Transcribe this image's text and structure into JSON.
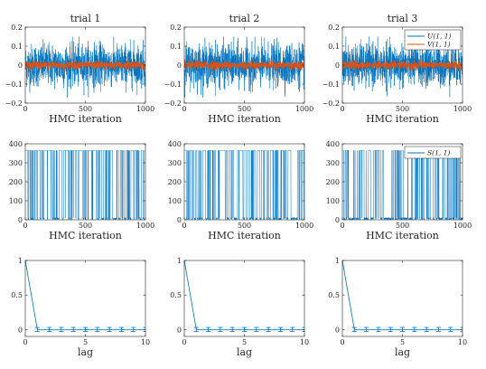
{
  "colors": {
    "blue": "#0072BD",
    "orange": "#D95319",
    "axis": "#262626",
    "background": "#ffffff"
  },
  "chart_data": [
    {
      "type": "line",
      "title": "trial 1",
      "xlabel": "HMC iteration",
      "ylabel": "",
      "xlim": [
        0,
        1000
      ],
      "ylim": [
        -0.2,
        0.2
      ],
      "xticks": [
        "0",
        "500",
        "1000"
      ],
      "yticks": [
        "-0.2",
        "-0.1",
        "0",
        "0.1",
        "0.2"
      ],
      "series": [
        {
          "name": "",
          "n_points": 1000,
          "mean": 0,
          "approx_range": [
            -0.17,
            0.15
          ]
        },
        {
          "name": "",
          "n_points": 1000,
          "mean": 0,
          "approx_range": [
            -0.03,
            0.03
          ]
        }
      ]
    },
    {
      "type": "line",
      "title": "trial 2",
      "xlabel": "HMC iteration",
      "ylabel": "",
      "xlim": [
        0,
        1000
      ],
      "ylim": [
        -0.2,
        0.2
      ],
      "xticks": [
        "0",
        "500",
        "1000"
      ],
      "yticks": [
        "-0.2",
        "-0.1",
        "0",
        "0.1",
        "0.2"
      ],
      "series": [
        {
          "name": "",
          "n_points": 1000,
          "mean": 0,
          "approx_range": [
            -0.17,
            0.15
          ]
        },
        {
          "name": "",
          "n_points": 1000,
          "mean": 0,
          "approx_range": [
            -0.03,
            0.03
          ]
        }
      ]
    },
    {
      "type": "line",
      "title": "trial 3",
      "xlabel": "HMC iteration",
      "ylabel": "",
      "xlim": [
        0,
        1000
      ],
      "ylim": [
        -0.2,
        0.2
      ],
      "xticks": [
        "0",
        "500",
        "1000"
      ],
      "yticks": [
        "-0.2",
        "-0.1",
        "0",
        "0.1",
        "0.2"
      ],
      "legend": {
        "placement": "top-right",
        "entries": [
          "U(1, 1)",
          "V(1, 1)"
        ]
      },
      "series": [
        {
          "name": "U(1, 1)",
          "n_points": 1000,
          "mean": 0,
          "approx_range": [
            -0.17,
            0.15
          ]
        },
        {
          "name": "V(1, 1)",
          "n_points": 1000,
          "mean": 0,
          "approx_range": [
            -0.03,
            0.03
          ]
        }
      ]
    },
    {
      "type": "line",
      "title": "",
      "xlabel": "HMC iteration",
      "ylabel": "",
      "xlim": [
        0,
        1000
      ],
      "ylim": [
        0,
        400
      ],
      "xticks": [
        "0",
        "500",
        "1000"
      ],
      "yticks": [
        "0",
        "100",
        "200",
        "300",
        "400"
      ],
      "series": [
        {
          "name": "",
          "n_points": 1000,
          "levels": [
            0,
            365
          ],
          "high_fraction": 0.8
        }
      ]
    },
    {
      "type": "line",
      "title": "",
      "xlabel": "HMC iteration",
      "ylabel": "",
      "xlim": [
        0,
        1000
      ],
      "ylim": [
        0,
        400
      ],
      "xticks": [
        "0",
        "500",
        "1000"
      ],
      "yticks": [
        "0",
        "100",
        "200",
        "300",
        "400"
      ],
      "series": [
        {
          "name": "",
          "n_points": 1000,
          "levels": [
            0,
            365
          ],
          "high_fraction": 0.45
        }
      ]
    },
    {
      "type": "line",
      "title": "",
      "xlabel": "HMC iteration",
      "ylabel": "",
      "xlim": [
        0,
        1000
      ],
      "ylim": [
        0,
        400
      ],
      "xticks": [
        "0",
        "500",
        "1000"
      ],
      "yticks": [
        "0",
        "100",
        "200",
        "300",
        "400"
      ],
      "legend": {
        "placement": "top-right",
        "entries": [
          "S(1, 1)"
        ]
      },
      "series": [
        {
          "name": "S(1, 1)",
          "n_points": 1000,
          "levels": [
            0,
            365
          ],
          "high_fraction": 0.15
        }
      ]
    },
    {
      "type": "line",
      "title": "",
      "xlabel": "lag",
      "ylabel": "",
      "xlim": [
        0,
        10
      ],
      "ylim": [
        -0.1,
        1
      ],
      "xticks": [
        "0",
        "5",
        "10"
      ],
      "yticks": [
        "0",
        "0.5",
        "1"
      ],
      "series": [
        {
          "name": "",
          "x": [
            0,
            1,
            2,
            3,
            4,
            5,
            6,
            7,
            8,
            9,
            10
          ],
          "y": [
            1,
            0,
            0,
            0,
            0,
            0,
            0,
            0,
            0,
            0,
            0
          ],
          "error": 0.03
        }
      ]
    },
    {
      "type": "line",
      "title": "",
      "xlabel": "lag",
      "ylabel": "",
      "xlim": [
        0,
        10
      ],
      "ylim": [
        -0.1,
        1
      ],
      "xticks": [
        "0",
        "5",
        "10"
      ],
      "yticks": [
        "0",
        "0.5",
        "1"
      ],
      "series": [
        {
          "name": "",
          "x": [
            0,
            1,
            2,
            3,
            4,
            5,
            6,
            7,
            8,
            9,
            10
          ],
          "y": [
            1,
            0,
            0,
            0,
            0,
            0,
            0,
            0,
            0,
            0,
            0
          ],
          "error": 0.03
        }
      ]
    },
    {
      "type": "line",
      "title": "",
      "xlabel": "lag",
      "ylabel": "",
      "xlim": [
        0,
        10
      ],
      "ylim": [
        -0.1,
        1
      ],
      "xticks": [
        "0",
        "5",
        "10"
      ],
      "yticks": [
        "0",
        "0.5",
        "1"
      ],
      "series": [
        {
          "name": "",
          "x": [
            0,
            1,
            2,
            3,
            4,
            5,
            6,
            7,
            8,
            9,
            10
          ],
          "y": [
            1,
            0,
            0,
            0,
            0,
            0,
            0,
            0,
            0,
            0,
            0
          ],
          "error": 0.03
        }
      ]
    }
  ]
}
